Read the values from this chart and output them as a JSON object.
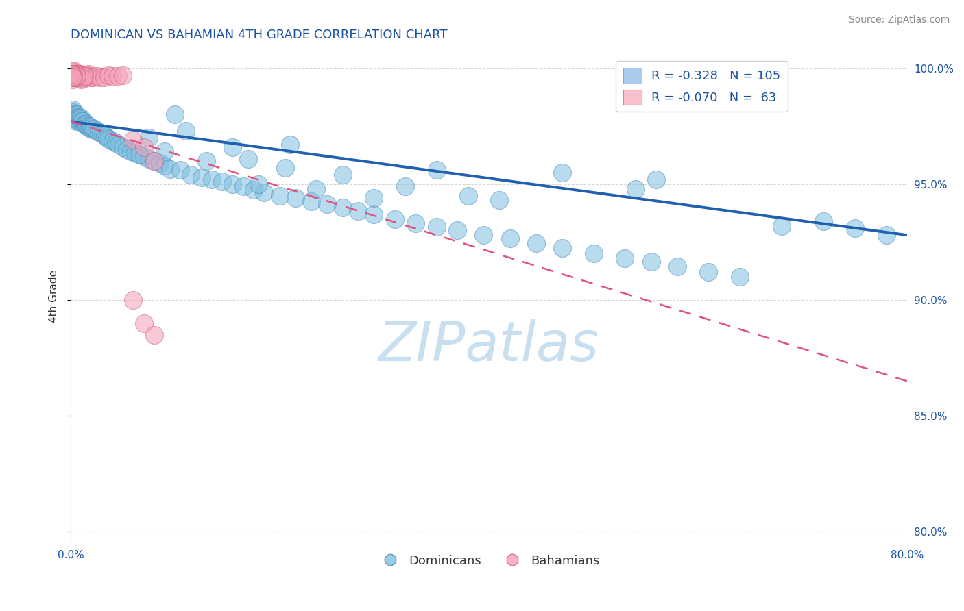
{
  "title": "DOMINICAN VS BAHAMIAN 4TH GRADE CORRELATION CHART",
  "source": "Source: ZipAtlas.com",
  "ylabel": "4th Grade",
  "x_min": 0.0,
  "x_max": 0.8,
  "y_min": 0.795,
  "y_max": 1.008,
  "yticks": [
    0.8,
    0.85,
    0.9,
    0.95,
    1.0
  ],
  "ytick_labels": [
    "80.0%",
    "85.0%",
    "90.0%",
    "95.0%",
    "100.0%"
  ],
  "xticks": [
    0.0,
    0.1,
    0.2,
    0.3,
    0.4,
    0.5,
    0.6,
    0.7,
    0.8
  ],
  "xtick_labels": [
    "0.0%",
    "",
    "",
    "",
    "",
    "",
    "",
    "",
    "80.0%"
  ],
  "blue_color": "#7fbfdf",
  "pink_color": "#f4a0b8",
  "blue_line_color": "#2060b0",
  "pink_line_color": "#e05080",
  "legend_r_blue": "-0.328",
  "legend_n_blue": "105",
  "legend_r_pink": "-0.070",
  "legend_n_pink": "63",
  "grid_color": "#c8c8c8",
  "title_color": "#1a52a0",
  "axis_color": "#1a52a0",
  "watermark_color": "#c8dff0",
  "blue_scatter_x": [
    0.001,
    0.002,
    0.002,
    0.003,
    0.003,
    0.004,
    0.004,
    0.005,
    0.005,
    0.006,
    0.006,
    0.007,
    0.007,
    0.008,
    0.009,
    0.01,
    0.01,
    0.011,
    0.012,
    0.013,
    0.014,
    0.015,
    0.016,
    0.017,
    0.018,
    0.019,
    0.02,
    0.022,
    0.023,
    0.025,
    0.027,
    0.029,
    0.031,
    0.033,
    0.035,
    0.037,
    0.04,
    0.043,
    0.046,
    0.05,
    0.054,
    0.058,
    0.062,
    0.066,
    0.07,
    0.075,
    0.08,
    0.085,
    0.09,
    0.095,
    0.105,
    0.115,
    0.125,
    0.135,
    0.145,
    0.155,
    0.165,
    0.175,
    0.185,
    0.2,
    0.215,
    0.23,
    0.245,
    0.26,
    0.275,
    0.29,
    0.31,
    0.33,
    0.35,
    0.37,
    0.395,
    0.42,
    0.445,
    0.47,
    0.5,
    0.53,
    0.555,
    0.58,
    0.61,
    0.64,
    0.065,
    0.075,
    0.09,
    0.11,
    0.13,
    0.155,
    0.18,
    0.205,
    0.235,
    0.26,
    0.29,
    0.32,
    0.35,
    0.1,
    0.21,
    0.47,
    0.68,
    0.72,
    0.75,
    0.78,
    0.38,
    0.41,
    0.17,
    0.54,
    0.56
  ],
  "blue_scatter_y": [
    0.98,
    0.979,
    0.982,
    0.9785,
    0.981,
    0.978,
    0.98,
    0.979,
    0.977,
    0.98,
    0.978,
    0.979,
    0.9775,
    0.9785,
    0.978,
    0.977,
    0.9785,
    0.9775,
    0.977,
    0.976,
    0.9755,
    0.976,
    0.975,
    0.9745,
    0.975,
    0.974,
    0.9745,
    0.9735,
    0.974,
    0.973,
    0.9725,
    0.972,
    0.9715,
    0.971,
    0.97,
    0.9695,
    0.9685,
    0.968,
    0.967,
    0.966,
    0.965,
    0.964,
    0.9635,
    0.9625,
    0.962,
    0.961,
    0.96,
    0.959,
    0.958,
    0.9565,
    0.956,
    0.954,
    0.953,
    0.952,
    0.951,
    0.95,
    0.949,
    0.9475,
    0.9465,
    0.945,
    0.944,
    0.9425,
    0.9415,
    0.94,
    0.9385,
    0.937,
    0.935,
    0.933,
    0.9315,
    0.93,
    0.928,
    0.9265,
    0.9245,
    0.9225,
    0.92,
    0.918,
    0.9165,
    0.9145,
    0.912,
    0.91,
    0.963,
    0.97,
    0.964,
    0.973,
    0.96,
    0.966,
    0.95,
    0.957,
    0.948,
    0.954,
    0.944,
    0.949,
    0.956,
    0.98,
    0.967,
    0.955,
    0.932,
    0.934,
    0.931,
    0.928,
    0.945,
    0.943,
    0.961,
    0.948,
    0.952
  ],
  "pink_scatter_x": [
    0.001,
    0.001,
    0.001,
    0.002,
    0.002,
    0.002,
    0.002,
    0.003,
    0.003,
    0.003,
    0.003,
    0.004,
    0.004,
    0.004,
    0.005,
    0.005,
    0.005,
    0.006,
    0.006,
    0.006,
    0.007,
    0.007,
    0.007,
    0.008,
    0.008,
    0.009,
    0.009,
    0.01,
    0.01,
    0.011,
    0.012,
    0.013,
    0.014,
    0.015,
    0.016,
    0.017,
    0.018,
    0.02,
    0.022,
    0.025,
    0.028,
    0.032,
    0.036,
    0.04,
    0.045,
    0.05,
    0.06,
    0.07,
    0.08,
    0.01,
    0.011,
    0.012,
    0.013,
    0.004,
    0.005,
    0.006,
    0.003,
    0.002,
    0.001,
    0.002,
    0.06,
    0.07,
    0.08
  ],
  "pink_scatter_y": [
    0.999,
    0.997,
    0.996,
    0.9975,
    0.9965,
    0.998,
    0.995,
    0.997,
    0.9965,
    0.9985,
    0.999,
    0.997,
    0.9975,
    0.996,
    0.997,
    0.9965,
    0.9975,
    0.997,
    0.996,
    0.9975,
    0.9965,
    0.997,
    0.996,
    0.9965,
    0.9975,
    0.996,
    0.997,
    0.9965,
    0.9975,
    0.996,
    0.997,
    0.9965,
    0.996,
    0.9965,
    0.997,
    0.9975,
    0.9965,
    0.996,
    0.996,
    0.9965,
    0.996,
    0.996,
    0.997,
    0.9965,
    0.9965,
    0.997,
    0.969,
    0.966,
    0.96,
    0.995,
    0.996,
    0.9955,
    0.9965,
    0.996,
    0.997,
    0.9965,
    0.997,
    0.9965,
    0.9975,
    0.996,
    0.9,
    0.89,
    0.885
  ],
  "blue_line_x0": 0.0,
  "blue_line_y0": 0.977,
  "blue_line_x1": 0.8,
  "blue_line_y1": 0.928,
  "pink_line_x0": 0.0,
  "pink_line_y0": 0.977,
  "pink_line_x1": 0.8,
  "pink_line_y1": 0.865
}
